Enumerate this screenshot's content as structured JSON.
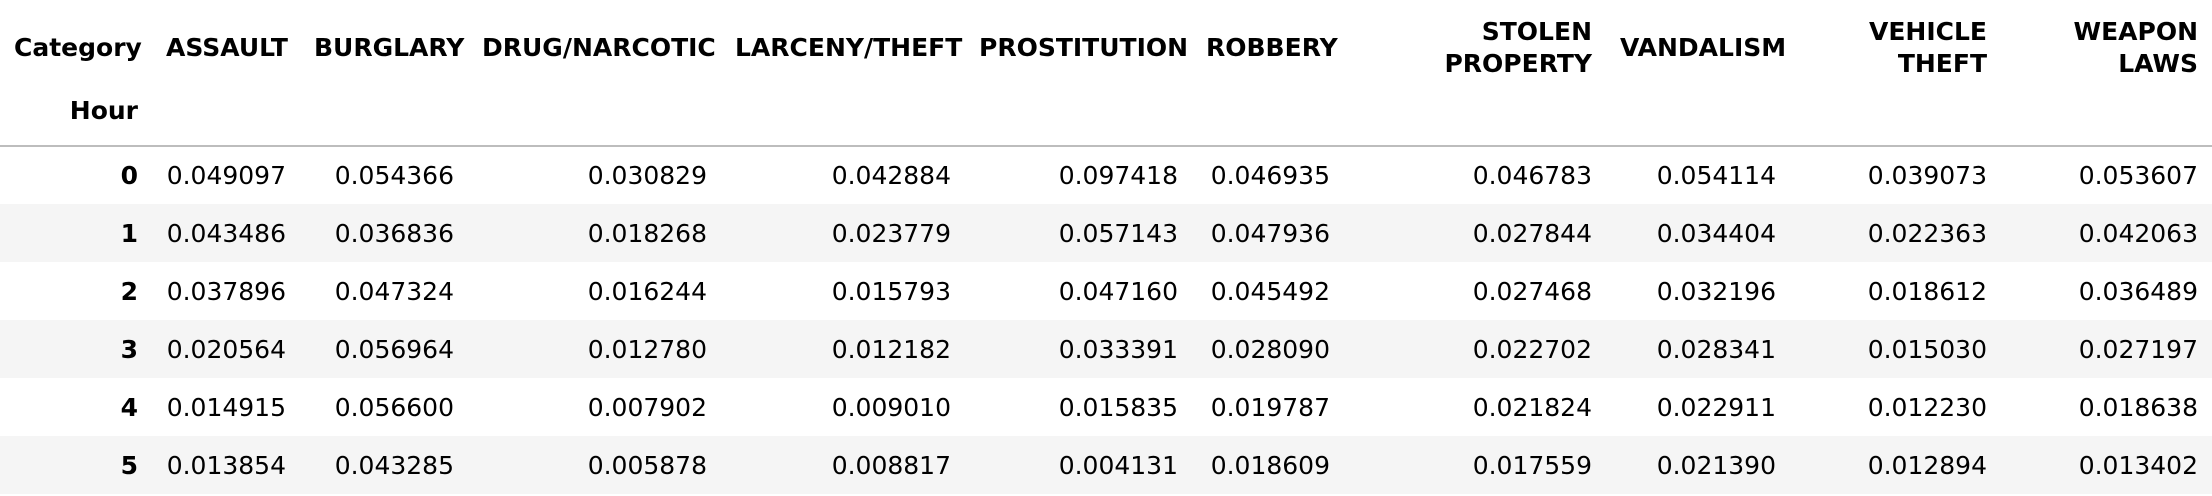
{
  "table": {
    "columns_name": "Category",
    "index_name": "Hour",
    "columns": [
      "ASSAULT",
      "BURGLARY",
      "DRUG/NARCOTIC",
      "LARCENY/THEFT",
      "PROSTITUTION",
      "ROBBERY",
      "STOLEN PROPERTY",
      "VANDALISM",
      "VEHICLE THEFT",
      "WEAPON LAWS"
    ],
    "rows": [
      {
        "index": "0",
        "cells": [
          "0.049097",
          "0.054366",
          "0.030829",
          "0.042884",
          "0.097418",
          "0.046935",
          "0.046783",
          "0.054114",
          "0.039073",
          "0.053607"
        ]
      },
      {
        "index": "1",
        "cells": [
          "0.043486",
          "0.036836",
          "0.018268",
          "0.023779",
          "0.057143",
          "0.047936",
          "0.027844",
          "0.034404",
          "0.022363",
          "0.042063"
        ]
      },
      {
        "index": "2",
        "cells": [
          "0.037896",
          "0.047324",
          "0.016244",
          "0.015793",
          "0.047160",
          "0.045492",
          "0.027468",
          "0.032196",
          "0.018612",
          "0.036489"
        ]
      },
      {
        "index": "3",
        "cells": [
          "0.020564",
          "0.056964",
          "0.012780",
          "0.012182",
          "0.033391",
          "0.028090",
          "0.022702",
          "0.028341",
          "0.015030",
          "0.027197"
        ]
      },
      {
        "index": "4",
        "cells": [
          "0.014915",
          "0.056600",
          "0.007902",
          "0.009010",
          "0.015835",
          "0.019787",
          "0.021824",
          "0.022911",
          "0.012230",
          "0.018638"
        ]
      },
      {
        "index": "5",
        "cells": [
          "0.013854",
          "0.043285",
          "0.005878",
          "0.008817",
          "0.004131",
          "0.018609",
          "0.017559",
          "0.021390",
          "0.012894",
          "0.013402"
        ]
      }
    ]
  },
  "colors": {
    "stripe": "#f5f5f5",
    "header_rule": "#bdbdbd",
    "text": "#000000"
  }
}
